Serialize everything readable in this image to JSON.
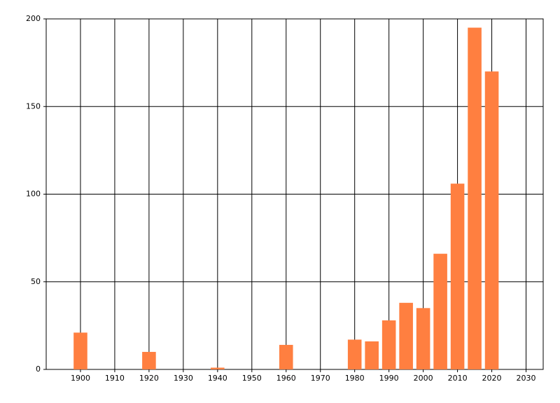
{
  "chart_data": {
    "type": "bar",
    "x": [
      1900,
      1920,
      1940,
      1960,
      1980,
      1985,
      1990,
      1995,
      2000,
      2005,
      2010,
      2015,
      2020
    ],
    "values": [
      21,
      10,
      1,
      14,
      17,
      16,
      28,
      38,
      35,
      66,
      106,
      195,
      170
    ],
    "color": "#ff7f40",
    "xlim": [
      1890,
      2035
    ],
    "xticks": [
      1900,
      1910,
      1920,
      1930,
      1940,
      1950,
      1960,
      1970,
      1980,
      1990,
      2000,
      2010,
      2020,
      2030
    ],
    "ylim": [
      0,
      200
    ],
    "yticks": [
      0,
      50,
      100,
      150,
      200
    ],
    "grid": true
  }
}
